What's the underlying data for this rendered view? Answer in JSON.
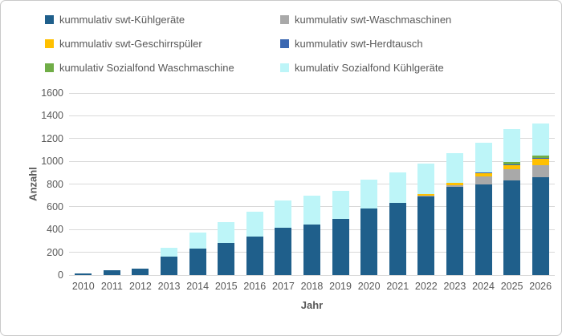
{
  "chart": {
    "text_color": "#595959",
    "gridline_color": "#d9d9d9",
    "background": "#ffffff"
  },
  "chart_data": {
    "type": "bar",
    "stacked": true,
    "title": "",
    "xlabel": "Jahr",
    "ylabel": "Anzahl",
    "ylim": [
      0,
      1600
    ],
    "ytick_step": 200,
    "grid": true,
    "legend_position": "top",
    "categories": [
      "2010",
      "2011",
      "2012",
      "2013",
      "2014",
      "2015",
      "2016",
      "2017",
      "2018",
      "2019",
      "2020",
      "2021",
      "2022",
      "2023",
      "2024",
      "2025",
      "2026"
    ],
    "series": [
      {
        "name": "kummulativ swt-Kühlgeräte",
        "color": "#1f5f8b",
        "values": [
          15,
          40,
          55,
          160,
          235,
          285,
          340,
          415,
          445,
          490,
          585,
          635,
          690,
          775,
          800,
          830,
          860
        ]
      },
      {
        "name": "kummulativ swt-Waschmaschinen",
        "color": "#a9a9a9",
        "values": [
          0,
          0,
          0,
          0,
          0,
          0,
          0,
          0,
          0,
          0,
          0,
          0,
          5,
          15,
          65,
          100,
          105
        ]
      },
      {
        "name": "kummulativ swt-Geschirrspüler",
        "color": "#ffc000",
        "values": [
          0,
          0,
          0,
          0,
          0,
          0,
          0,
          0,
          0,
          0,
          0,
          0,
          20,
          20,
          30,
          40,
          55
        ]
      },
      {
        "name": "kummulativ swt-Herdtausch",
        "color": "#3a67b1",
        "values": [
          0,
          0,
          0,
          0,
          0,
          0,
          0,
          0,
          0,
          0,
          0,
          0,
          0,
          0,
          8,
          6,
          6
        ]
      },
      {
        "name": "kumulativ Sozialfond Waschmaschine",
        "color": "#70ad47",
        "values": [
          0,
          0,
          0,
          0,
          0,
          0,
          0,
          0,
          0,
          0,
          0,
          0,
          0,
          0,
          0,
          20,
          25
        ]
      },
      {
        "name": "kumulativ Sozialfond Kühlgeräte",
        "color": "#bdf5f8",
        "values": [
          0,
          0,
          0,
          80,
          140,
          180,
          220,
          240,
          255,
          250,
          255,
          265,
          265,
          265,
          260,
          285,
          280
        ]
      }
    ]
  }
}
